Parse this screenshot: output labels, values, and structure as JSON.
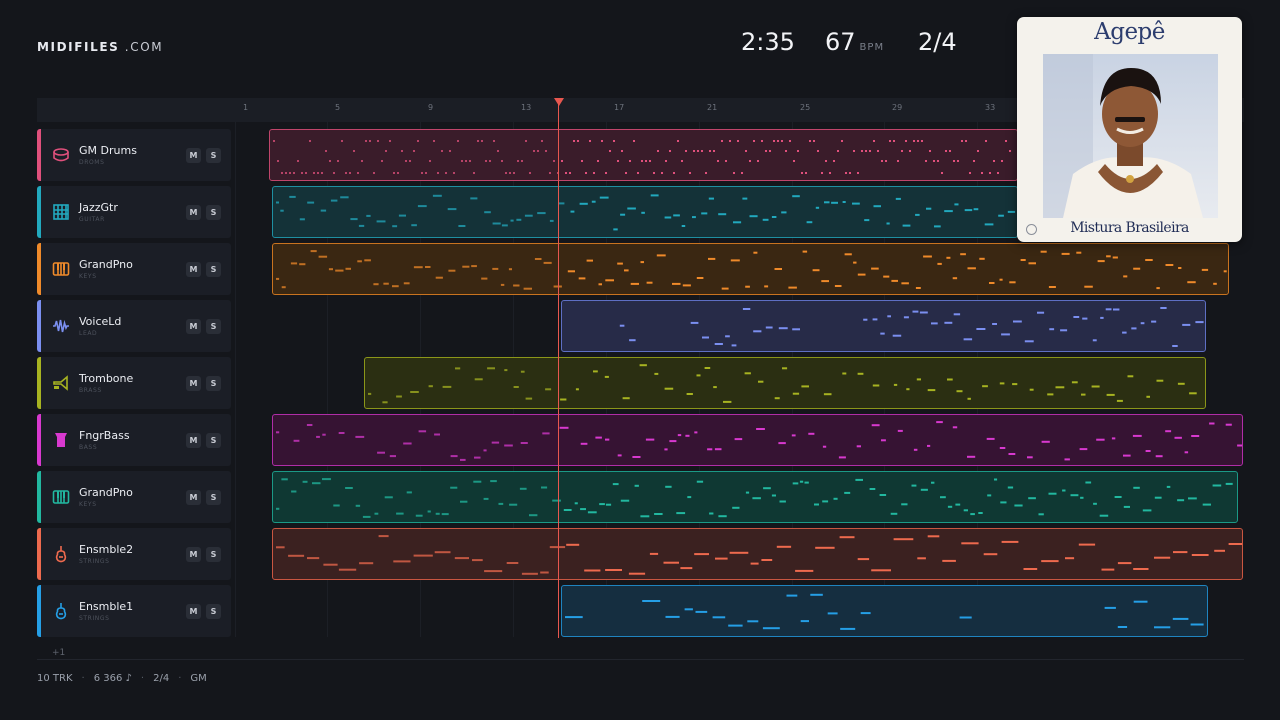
{
  "brand": {
    "bold": "MIDIFILES",
    "light": " .COM"
  },
  "readouts": {
    "time": "2:35",
    "tempo": "67",
    "tempo_unit": "BPM",
    "meter": "2/4"
  },
  "ruler_ticks": [
    "1",
    "5",
    "9",
    "13",
    "17",
    "21",
    "25",
    "29",
    "33"
  ],
  "tracks": [
    {
      "name": "GM Drums",
      "sub": "DROMS",
      "icon": "drum-icon",
      "color": "#e0507c",
      "m": "M",
      "s": "S"
    },
    {
      "name": "JazzGtr",
      "sub": "GUITAR",
      "icon": "guitar-grid-icon",
      "color": "#22a9be",
      "m": "M",
      "s": "S"
    },
    {
      "name": "GrandPno",
      "sub": "KEYS",
      "icon": "piano-keys-icon",
      "color": "#ef8a2a",
      "m": "M",
      "s": "S"
    },
    {
      "name": "VoiceLd",
      "sub": "LEAD",
      "icon": "waveform-icon",
      "color": "#7b8ff0",
      "m": "M",
      "s": "S"
    },
    {
      "name": "Trombone",
      "sub": "BRASS",
      "icon": "trombone-icon",
      "color": "#a7b321",
      "m": "M",
      "s": "S"
    },
    {
      "name": "FngrBass",
      "sub": "BASS",
      "icon": "bass-amp-icon",
      "color": "#d839cf",
      "m": "M",
      "s": "S"
    },
    {
      "name": "GrandPno",
      "sub": "KEYS",
      "icon": "piano-keys-icon",
      "color": "#22b8a0",
      "m": "M",
      "s": "S"
    },
    {
      "name": "Ensmble2",
      "sub": "STRINGS",
      "icon": "violin-icon",
      "color": "#ee6a4e",
      "m": "M",
      "s": "S"
    },
    {
      "name": "Ensmble1",
      "sub": "STRINGS",
      "icon": "violin-icon",
      "color": "#259fe6",
      "m": "M",
      "s": "S"
    }
  ],
  "plus": "+1",
  "footer": {
    "tracks": "10 TRK",
    "notes": "6 366 ♪",
    "meter": "2/4",
    "standard": "GM"
  },
  "album": {
    "artist": "Agepê",
    "title": "Mistura Brasileira"
  }
}
